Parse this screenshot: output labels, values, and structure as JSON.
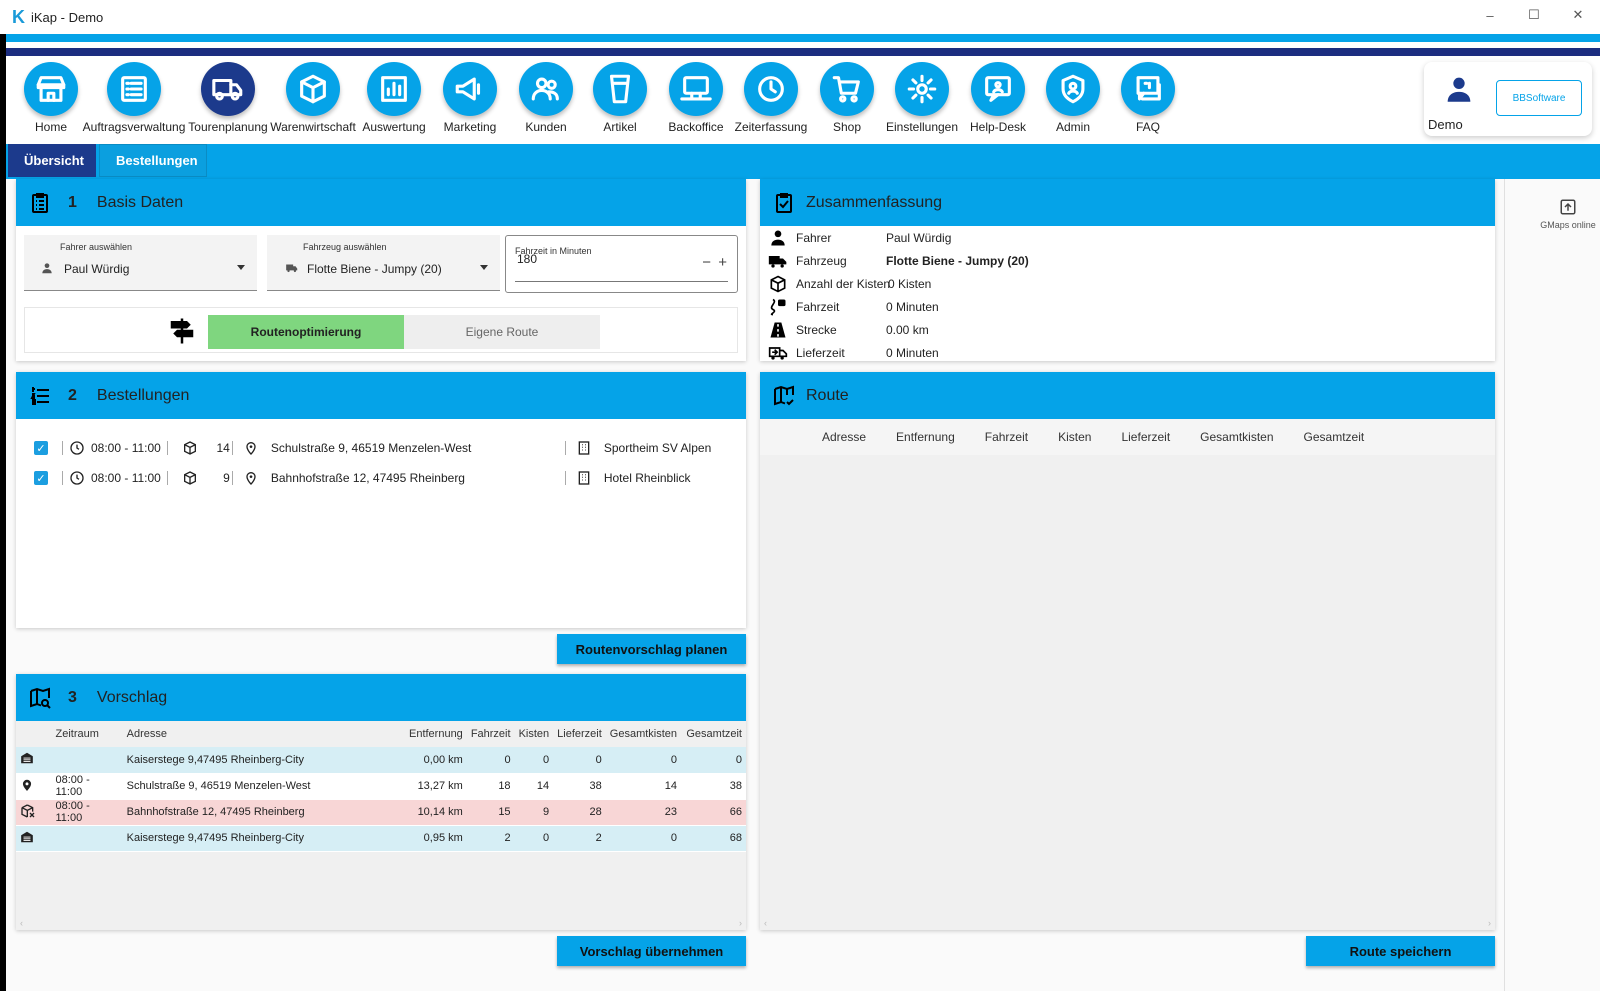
{
  "window": {
    "title": "iKap - Demo",
    "logo": "K",
    "controls": [
      "–",
      "☐",
      "✕"
    ]
  },
  "toolbar": {
    "items": [
      {
        "label": "Home",
        "icon": "store-icon"
      },
      {
        "label": "Auftragsverwaltung",
        "icon": "list-icon"
      },
      {
        "label": "Tourenplanung",
        "icon": "truck-icon"
      },
      {
        "label": "Warenwirtschaft",
        "icon": "box-icon"
      },
      {
        "label": "Auswertung",
        "icon": "bar-chart-icon"
      },
      {
        "label": "Marketing",
        "icon": "megaphone-icon"
      },
      {
        "label": "Kunden",
        "icon": "users-icon"
      },
      {
        "label": "Artikel",
        "icon": "glass-icon"
      },
      {
        "label": "Backoffice",
        "icon": "computer-icon"
      },
      {
        "label": "Zeiterfassung",
        "icon": "clock-icon"
      },
      {
        "label": "Shop",
        "icon": "cart-icon"
      },
      {
        "label": "Einstellungen",
        "icon": "gear-icon"
      },
      {
        "label": "Help-Desk",
        "icon": "help-chat-icon"
      },
      {
        "label": "Admin",
        "icon": "shield-user-icon"
      },
      {
        "label": "FAQ",
        "icon": "faq-icon"
      }
    ],
    "active": "Tourenplanung"
  },
  "user": {
    "name": "Demo",
    "brand": "BBSoftware"
  },
  "tabs": [
    {
      "label": "Übersicht"
    },
    {
      "label": "Bestellungen"
    }
  ],
  "basis": {
    "number": "1",
    "title": "Basis Daten",
    "driver_label": "Fahrer auswählen",
    "driver": "Paul Würdig",
    "vehicle_label": "Fahrzeug auswählen",
    "vehicle": "Flotte Biene - Jumpy (20)",
    "time_label": "Fahrzeit in Minuten",
    "time": "180",
    "minus": "−",
    "plus": "+",
    "opt_active": "Routenoptimierung",
    "opt_inactive": "Eigene Route"
  },
  "orders": {
    "number": "2",
    "title": "Bestellungen",
    "rows": [
      {
        "time": "08:00 - 11:00",
        "boxes": "14",
        "address": "Schulstraße 9, 46519 Menzelen-West",
        "customer": "Sportheim SV Alpen"
      },
      {
        "time": "08:00 - 11:00",
        "boxes": "9",
        "address": "Bahnhofstraße 12, 47495 Rheinberg",
        "customer": "Hotel Rheinblick"
      }
    ],
    "button": "Routenvorschlag planen"
  },
  "vorschlag": {
    "number": "3",
    "title": "Vorschlag",
    "columns": [
      "Zeitraum",
      "Adresse",
      "Entfernung",
      "Fahrzeit",
      "Kisten",
      "Lieferzeit",
      "Gesamtkisten",
      "Gesamtzeit"
    ],
    "rows": [
      {
        "icon": "depot-icon",
        "style": "blue",
        "zeitraum": "",
        "adresse": "Kaiserstege 9,47495 Rheinberg-City",
        "entfernung": "0,00 km",
        "fahrzeit": "0",
        "kisten": "0",
        "lieferzeit": "0",
        "gesamtkisten": "0",
        "gesamtzeit": "0"
      },
      {
        "icon": "pin-icon",
        "style": "white",
        "zeitraum": "08:00 - 11:00",
        "adresse": "Schulstraße 9, 46519 Menzelen-West",
        "entfernung": "13,27 km",
        "fahrzeit": "18",
        "kisten": "14",
        "lieferzeit": "38",
        "gesamtkisten": "14",
        "gesamtzeit": "38"
      },
      {
        "icon": "box-x-icon",
        "style": "red",
        "zeitraum": "08:00 - 11:00",
        "adresse": "Bahnhofstraße 12, 47495 Rheinberg",
        "entfernung": "10,14 km",
        "fahrzeit": "15",
        "kisten": "9",
        "lieferzeit": "28",
        "gesamtkisten": "23",
        "gesamtzeit": "66"
      },
      {
        "icon": "depot-icon",
        "style": "blue",
        "zeitraum": "",
        "adresse": "Kaiserstege 9,47495 Rheinberg-City",
        "entfernung": "0,95 km",
        "fahrzeit": "2",
        "kisten": "0",
        "lieferzeit": "2",
        "gesamtkisten": "0",
        "gesamtzeit": "68"
      }
    ],
    "button": "Vorschlag übernehmen"
  },
  "summary": {
    "title": "Zusammenfassung",
    "rows": [
      {
        "label": "Fahrer",
        "value": "Paul Würdig",
        "icon": "person-icon"
      },
      {
        "label": "Fahrzeug",
        "value": "Flotte Biene - Jumpy (20)",
        "icon": "truck-icon"
      },
      {
        "label": "Anzahl der Kisten",
        "value": "0  Kisten",
        "icon": "box-icon"
      },
      {
        "label": "Fahrzeit",
        "value": "0  Minuten",
        "icon": "road-icon"
      },
      {
        "label": "Strecke",
        "value": "0.00  km",
        "icon": "route-icon"
      },
      {
        "label": "Lieferzeit",
        "value": "0  Minuten",
        "icon": "delivery-icon"
      }
    ]
  },
  "route": {
    "title": "Route",
    "columns": [
      "Adresse",
      "Entfernung",
      "Fahrzeit",
      "Kisten",
      "Lieferzeit",
      "Gesamtkisten",
      "Gesamtzeit"
    ],
    "button": "Route speichern"
  },
  "side": {
    "gmaps": "GMaps online"
  },
  "colors": {
    "accent": "#05a3e8",
    "dark": "#1c3a8c",
    "green": "#7fd67f",
    "row_blue": "#d6eef5",
    "row_red": "#f8d6d6"
  }
}
